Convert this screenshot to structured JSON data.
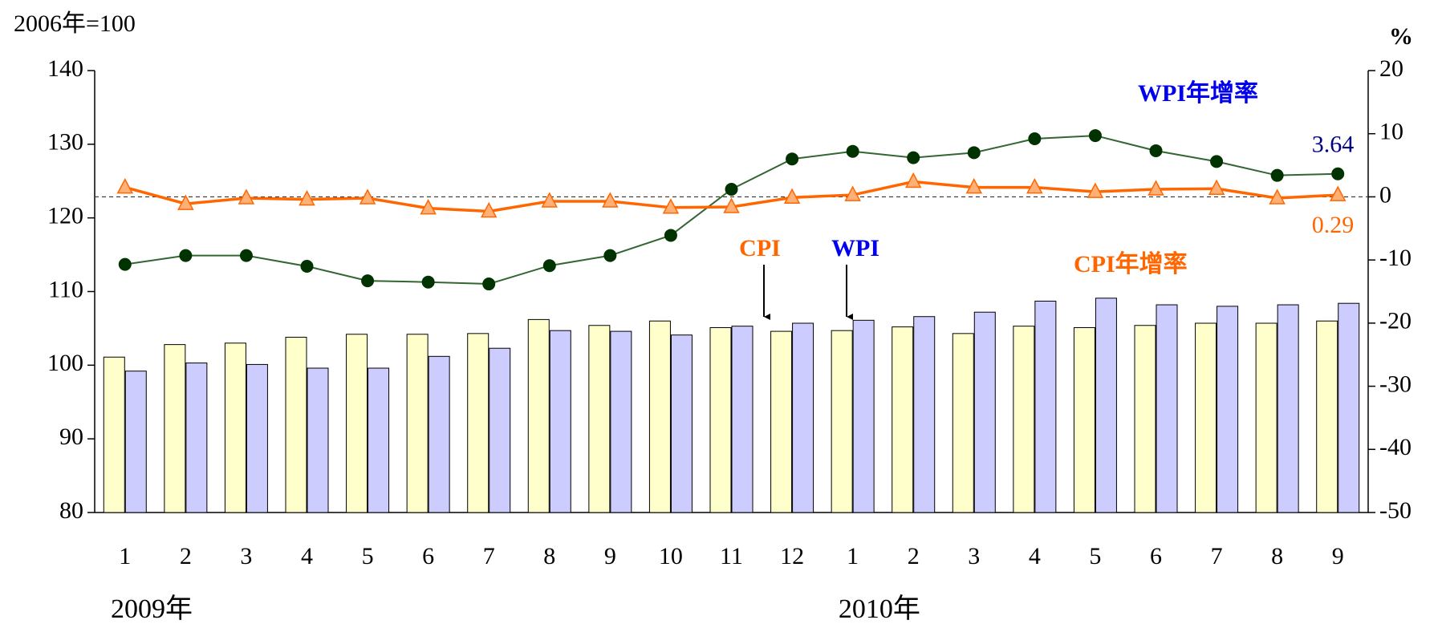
{
  "chart_data": {
    "type": "bar-line",
    "ylabel": "2006年=100",
    "y2label": "%",
    "categories": [
      "1",
      "2",
      "3",
      "4",
      "5",
      "6",
      "7",
      "8",
      "9",
      "10",
      "11",
      "12",
      "1",
      "2",
      "3",
      "4",
      "5",
      "6",
      "7",
      "8",
      "9"
    ],
    "year_labels": [
      "2009年",
      "2010年"
    ],
    "ylim": [
      80,
      140
    ],
    "yticks": [
      80,
      90,
      100,
      110,
      120,
      130,
      140
    ],
    "y2lim": [
      -50,
      20
    ],
    "y2ticks": [
      -50,
      -40,
      -30,
      -20,
      -10,
      0,
      10,
      20
    ],
    "series": [
      {
        "name": "CPI",
        "kind": "bar",
        "color": "#ffffcc",
        "values": [
          101.1,
          102.8,
          103.0,
          103.8,
          104.2,
          104.2,
          104.3,
          106.2,
          105.4,
          106.0,
          105.1,
          104.6,
          104.7,
          105.2,
          104.3,
          105.3,
          105.1,
          105.4,
          105.7,
          105.7,
          106.0
        ]
      },
      {
        "name": "WPI",
        "kind": "bar",
        "color": "#ccccff",
        "values": [
          99.2,
          100.3,
          100.1,
          99.6,
          99.6,
          101.2,
          102.3,
          104.7,
          104.6,
          104.1,
          105.3,
          105.7,
          106.1,
          106.6,
          107.2,
          108.7,
          109.1,
          108.2,
          108.0,
          108.2,
          108.4
        ]
      },
      {
        "name": "WPI年增率",
        "kind": "line",
        "axis": "y2",
        "color": "#003300",
        "values": [
          -10.7,
          -9.3,
          -9.3,
          -11.0,
          -13.3,
          -13.5,
          -13.8,
          -10.9,
          -9.3,
          -6.1,
          1.2,
          6.0,
          7.2,
          6.2,
          7.0,
          9.2,
          9.7,
          7.3,
          5.6,
          3.4,
          3.64
        ],
        "value_labels": [
          null,
          null,
          null,
          null,
          null,
          null,
          null,
          null,
          null,
          null,
          null,
          null,
          null,
          null,
          null,
          null,
          null,
          null,
          null,
          null,
          "3.64"
        ]
      },
      {
        "name": "CPI年增率",
        "kind": "line",
        "axis": "y2",
        "color": "#ff6600",
        "values": [
          1.5,
          -1.1,
          -0.2,
          -0.4,
          -0.2,
          -1.8,
          -2.3,
          -0.7,
          -0.7,
          -1.7,
          -1.6,
          -0.1,
          0.3,
          2.4,
          1.5,
          1.5,
          0.8,
          1.2,
          1.3,
          -0.2,
          0.29
        ],
        "value_labels": [
          null,
          null,
          null,
          null,
          null,
          null,
          null,
          null,
          null,
          null,
          null,
          null,
          null,
          null,
          null,
          null,
          null,
          null,
          null,
          null,
          "0.29"
        ]
      }
    ]
  }
}
